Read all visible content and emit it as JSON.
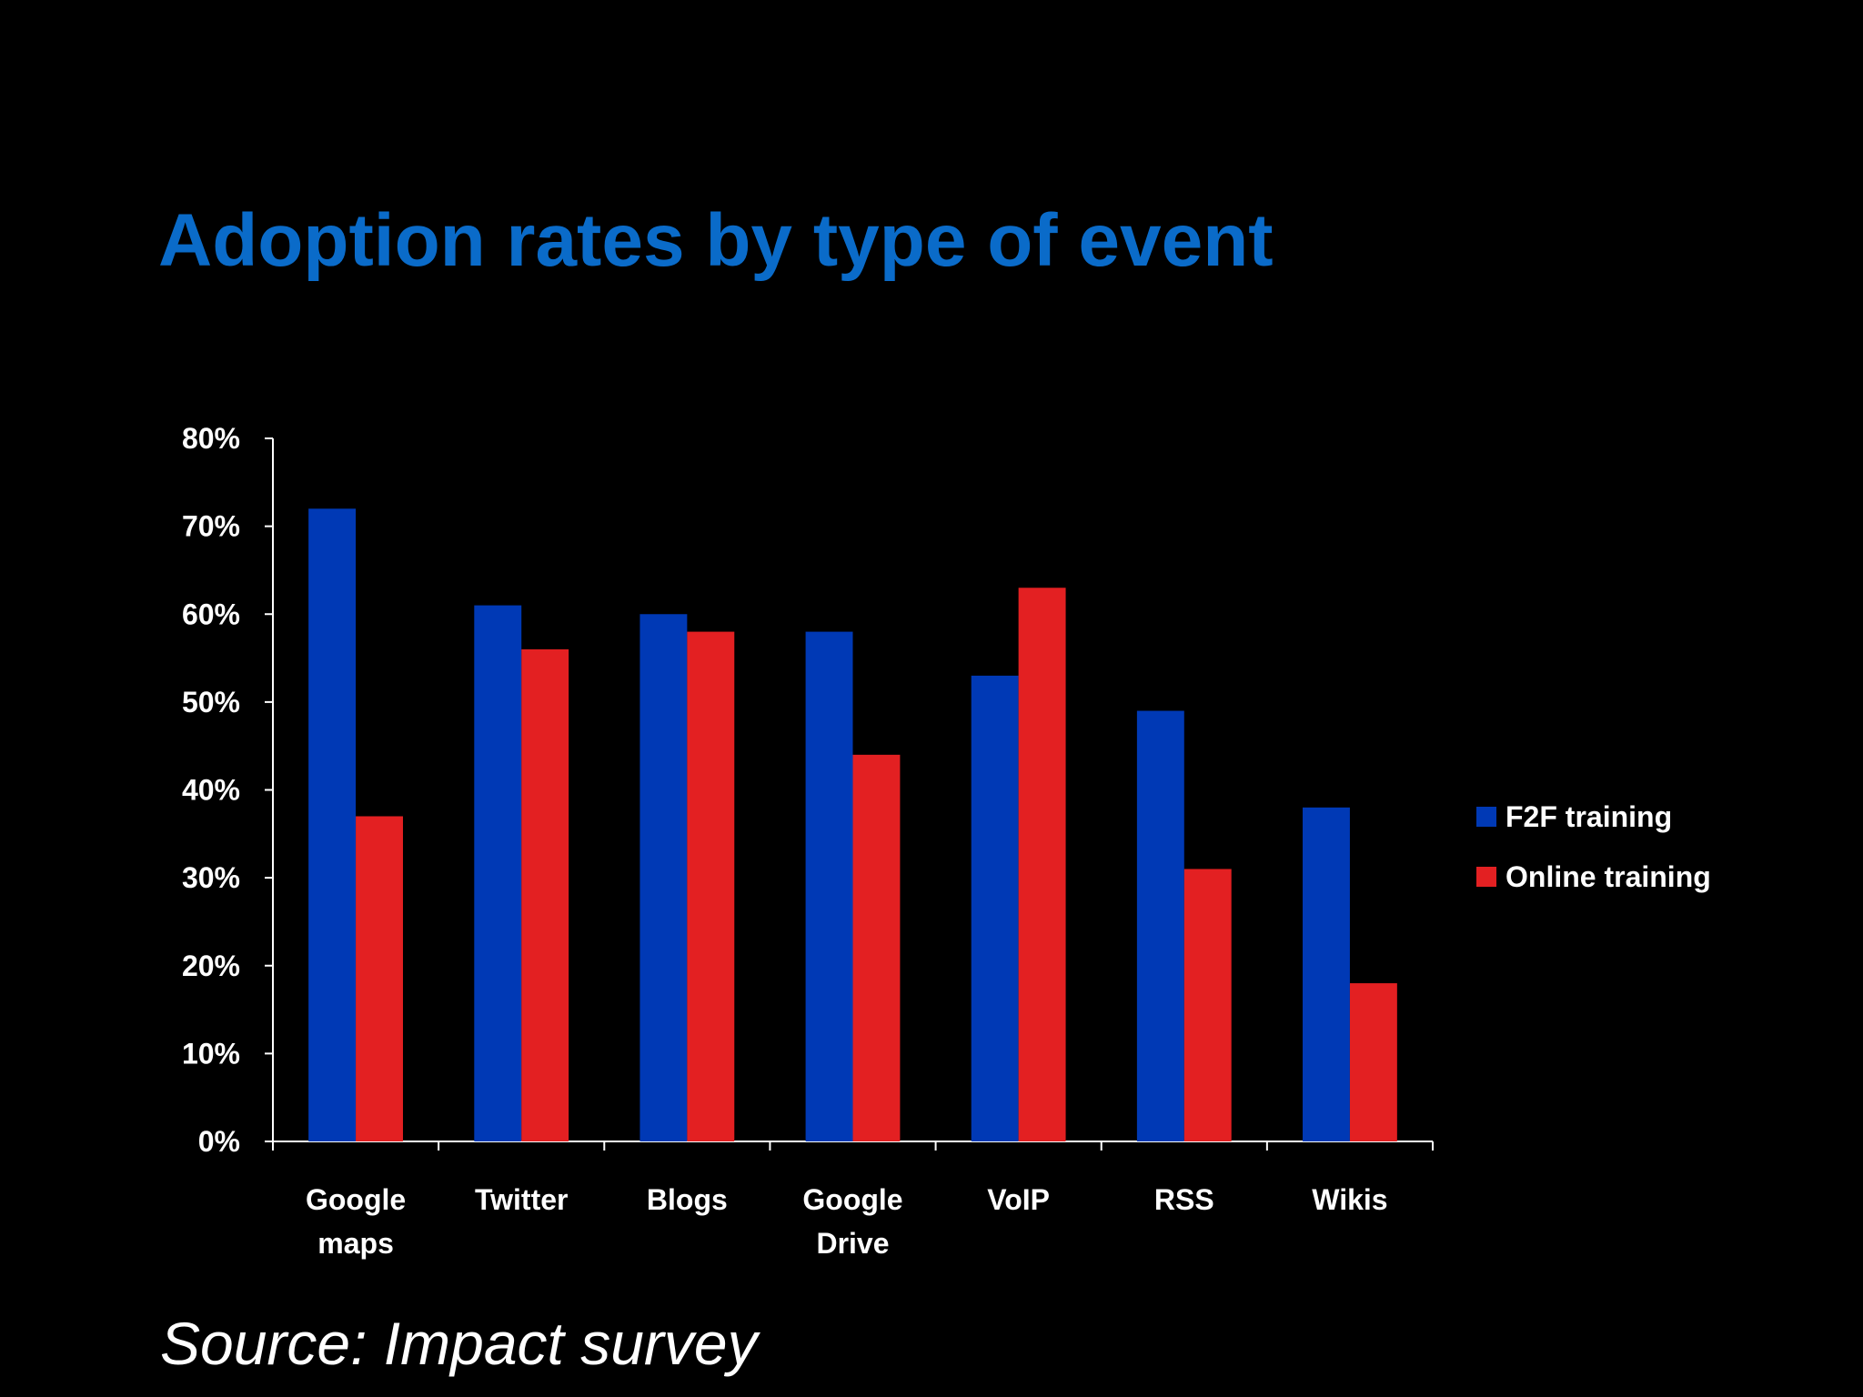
{
  "chart_data": {
    "type": "bar",
    "title": "Adoption rates by type of event",
    "source": "Source: Impact survey",
    "categories": [
      "Google maps",
      "Twitter",
      "Blogs",
      "Google Drive",
      "VoIP",
      "RSS",
      "Wikis"
    ],
    "series": [
      {
        "name": "F2F training",
        "color": "#0039b5",
        "values": [
          72,
          61,
          60,
          58,
          53,
          49,
          38
        ]
      },
      {
        "name": "Online training",
        "color": "#e32022",
        "values": [
          37,
          56,
          58,
          44,
          63,
          31,
          18
        ]
      }
    ],
    "ylim": [
      0,
      80
    ],
    "yticks": [
      {
        "value": 0,
        "label": "0%"
      },
      {
        "value": 10,
        "label": "10%"
      },
      {
        "value": 20,
        "label": "20%"
      },
      {
        "value": 30,
        "label": "30%"
      },
      {
        "value": 40,
        "label": "40%"
      },
      {
        "value": 50,
        "label": "50%"
      },
      {
        "value": 60,
        "label": "60%"
      },
      {
        "value": 70,
        "label": "70%"
      },
      {
        "value": 80,
        "label": "80%"
      }
    ],
    "grid": false,
    "legend": "right"
  }
}
